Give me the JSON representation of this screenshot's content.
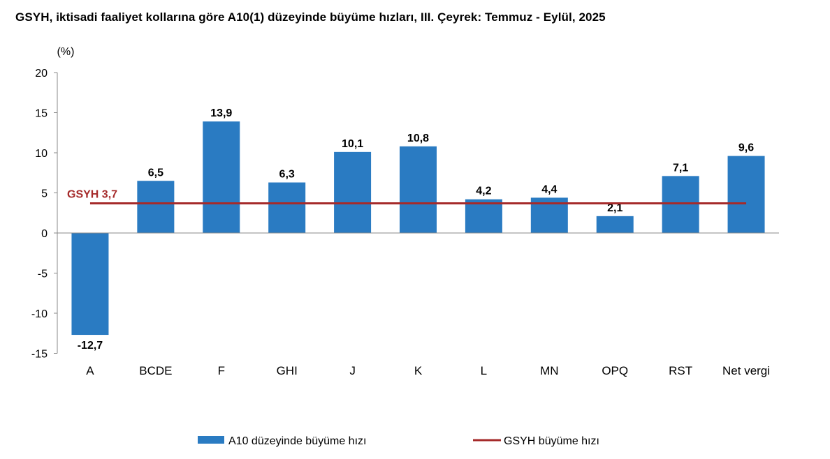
{
  "chart_data": {
    "type": "bar",
    "title": "GSYH, iktisadi faaliyet kollarına göre A10(1) düzeyinde büyüme hızları, III. Çeyrek: Temmuz - Eylül, 2025",
    "unit_label": "(%)",
    "categories": [
      "A",
      "BCDE",
      "F",
      "GHI",
      "J",
      "K",
      "L",
      "MN",
      "OPQ",
      "RST",
      "Net vergi"
    ],
    "series": [
      {
        "name": "A10 düzeyinde büyüme hızı",
        "values": [
          -12.7,
          6.5,
          13.9,
          6.3,
          10.1,
          10.8,
          4.2,
          4.4,
          2.1,
          7.1,
          9.6
        ],
        "labels": [
          "-12,7",
          "6,5",
          "13,9",
          "6,3",
          "10,1",
          "10,8",
          "4,2",
          "4,4",
          "2,1",
          "7,1",
          "9,6"
        ],
        "color": "#2a7bc2"
      }
    ],
    "reference_line": {
      "name": "GSYH büyüme hızı",
      "value": 3.7,
      "label": "GSYH 3,7",
      "color": "#a52a2a"
    },
    "yticks": [
      20,
      15,
      10,
      5,
      0,
      -5,
      -10,
      -15
    ],
    "ylim": [
      -15,
      20
    ],
    "grid": false,
    "legend_position": "bottom"
  }
}
